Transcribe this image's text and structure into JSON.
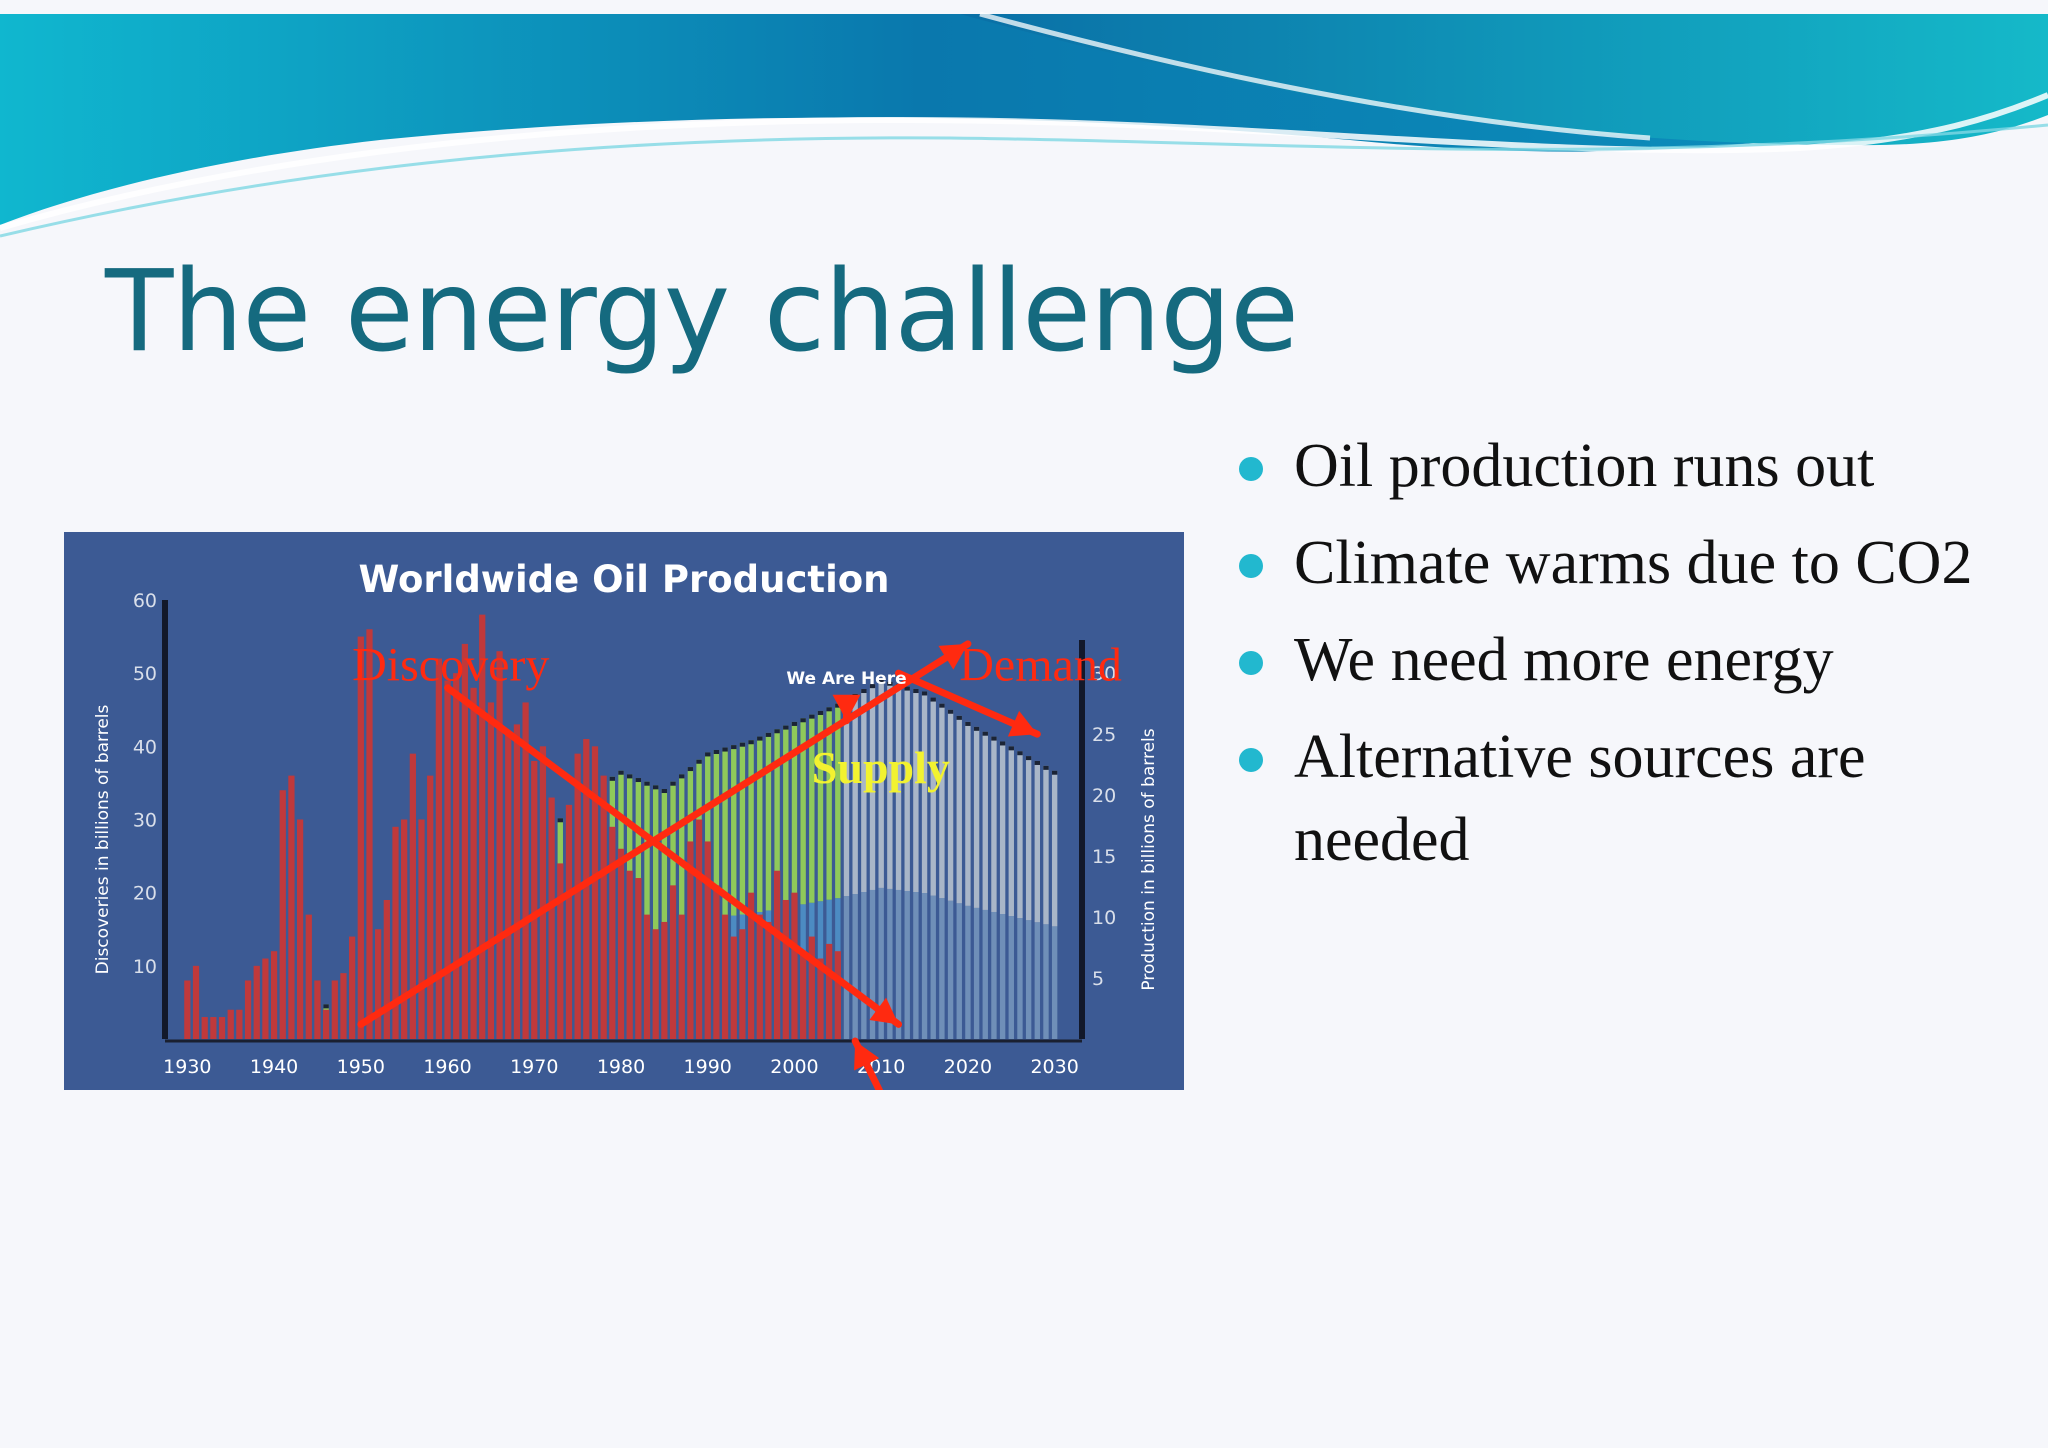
{
  "slide": {
    "title": "The energy challenge",
    "bullets": [
      "Oil production runs out",
      "Climate warms due to CO2",
      "We need more energy",
      "Alternative sources are needed"
    ]
  },
  "colors": {
    "title": "#156a7f",
    "bullet_dot": "#22b8cf",
    "panel_bg": "#3c5a94",
    "discoveries": "#c0393b",
    "production_green": "#8fc95a",
    "production_blue": "#4c8bc2",
    "production_grey": "#a9b6c8",
    "annotation": "#ff2a10",
    "supply_label": "#f2f230"
  },
  "chart_data": {
    "type": "bar",
    "title": "Worldwide Oil Production",
    "ylabel_left": "Discoveries in billions of barrels",
    "ylabel_right": "Production in billions of barrels",
    "x_ticks": [
      1930,
      1940,
      1950,
      1960,
      1970,
      1980,
      1990,
      2000,
      2010,
      2020,
      2030
    ],
    "xlim": [
      1928,
      2032
    ],
    "y_left_ticks": [
      10,
      20,
      30,
      40,
      50,
      60
    ],
    "ylim_left": [
      0,
      60
    ],
    "y_right_ticks": [
      5,
      10,
      15,
      20,
      25,
      30
    ],
    "ylim_right": [
      0,
      36
    ],
    "grid": false,
    "legend": "none",
    "series": [
      {
        "axis": "left",
        "x": [
          1930,
          1931,
          1932,
          1933,
          1934,
          1935,
          1936,
          1937,
          1938,
          1939,
          1940,
          1941,
          1942,
          1943,
          1944,
          1945,
          1946,
          1947,
          1948,
          1949,
          1950,
          1951,
          1952,
          1953,
          1954,
          1955,
          1956,
          1957,
          1958,
          1959,
          1960,
          1961,
          1962,
          1963,
          1964,
          1965,
          1966,
          1967,
          1968,
          1969,
          1970,
          1971,
          1972,
          1973,
          1974,
          1975,
          1976,
          1977,
          1978,
          1979,
          1980,
          1981,
          1982,
          1983,
          1984,
          1985,
          1986,
          1987,
          1988,
          1989,
          1990,
          1991,
          1992,
          1993,
          1994,
          1995,
          1996,
          1997,
          1998,
          1999,
          2000,
          2001,
          2002,
          2003,
          2004,
          2005
        ],
        "values": [
          8,
          10,
          3,
          3,
          3,
          4,
          4,
          8,
          10,
          11,
          12,
          34,
          36,
          30,
          17,
          8,
          4,
          8,
          9,
          14,
          55,
          56,
          15,
          19,
          29,
          30,
          39,
          30,
          36,
          52,
          49,
          50,
          54,
          48,
          58,
          46,
          53,
          42,
          43,
          46,
          38,
          40,
          33,
          24,
          32,
          39,
          41,
          40,
          36,
          29,
          26,
          23,
          22,
          17,
          15,
          16,
          21,
          17,
          27,
          30,
          27,
          21,
          17,
          14,
          15,
          20,
          17,
          16,
          23,
          19,
          20,
          12,
          14,
          11,
          13,
          12
        ]
      },
      {
        "axis": "right",
        "x": [
          1930,
          1935,
          1940,
          1945,
          1950,
          1955,
          1960,
          1965,
          1970,
          1975,
          1980,
          1985,
          1990,
          1995,
          2000,
          2005,
          2010,
          2015,
          2020,
          2025,
          2030
        ],
        "values": [
          1.2,
          1.6,
          2.1,
          2.6,
          3.8,
          5.5,
          7.8,
          11,
          16,
          19.5,
          22,
          20.5,
          23.5,
          24.5,
          26,
          27.5,
          29.5,
          28.5,
          26,
          24,
          22
        ]
      }
    ],
    "annotations": [
      {
        "text": "Discovery",
        "kind": "label"
      },
      {
        "text": "Demand",
        "kind": "label"
      },
      {
        "text": "Supply",
        "kind": "label"
      },
      {
        "text": "We Are Here",
        "kind": "marker"
      }
    ]
  }
}
